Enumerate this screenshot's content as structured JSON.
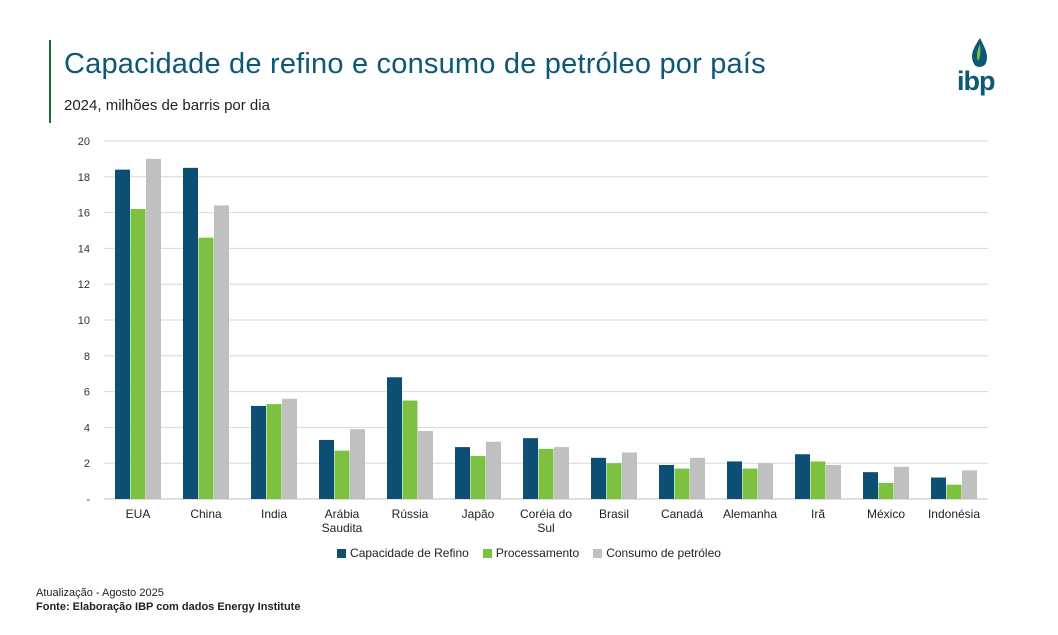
{
  "header": {
    "title": "Capacidade de refino e consumo de petróleo por país",
    "subtitle": "2024, milhões de barris por dia"
  },
  "logo": {
    "text": "ibp",
    "color": "#0d5777"
  },
  "footer": {
    "update": "Atualização - Agosto 2025",
    "source": "Fonte: Elaboração IBP com dados Energy Institute"
  },
  "chart_data": {
    "type": "bar",
    "title": "Capacidade de refino e consumo de petróleo por país",
    "subtitle": "2024, milhões de barris por dia",
    "xlabel": "",
    "ylabel": "",
    "ylim": [
      0,
      20
    ],
    "yticks": [
      "-",
      "2",
      "4",
      "6",
      "8",
      "10",
      "12",
      "14",
      "16",
      "18",
      "20"
    ],
    "grid": true,
    "legend_position": "bottom",
    "categories": [
      [
        "EUA"
      ],
      [
        "China"
      ],
      [
        "India"
      ],
      [
        "Arábia",
        "Saudita"
      ],
      [
        "Rússia"
      ],
      [
        "Japão"
      ],
      [
        "Coréia do",
        "Sul"
      ],
      [
        "Brasil"
      ],
      [
        "Canadá"
      ],
      [
        "Alemanha"
      ],
      [
        "Irã"
      ],
      [
        "México"
      ],
      [
        "Indonésia"
      ]
    ],
    "series": [
      {
        "name": "Capacidade de Refino",
        "color": "#0d4f74",
        "values": [
          18.4,
          18.5,
          5.2,
          3.3,
          6.8,
          2.9,
          3.4,
          2.3,
          1.9,
          2.1,
          2.5,
          1.5,
          1.2
        ]
      },
      {
        "name": "Processamento",
        "color": "#7cc142",
        "values": [
          16.2,
          14.6,
          5.3,
          2.7,
          5.5,
          2.4,
          2.8,
          2.0,
          1.7,
          1.7,
          2.1,
          0.9,
          0.8
        ]
      },
      {
        "name": "Consumo de petróleo",
        "color": "#c0c0c0",
        "values": [
          19.0,
          16.4,
          5.6,
          3.9,
          3.8,
          3.2,
          2.9,
          2.6,
          2.3,
          2.0,
          1.9,
          1.8,
          1.6
        ]
      }
    ]
  }
}
